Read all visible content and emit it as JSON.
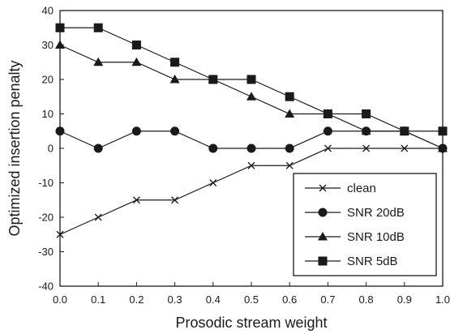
{
  "chart_data": {
    "type": "line",
    "title": "",
    "xlabel": "Prosodic stream weight",
    "ylabel": "Optimized insertion penalty",
    "xlim": [
      0.0,
      1.0
    ],
    "ylim": [
      -40,
      40
    ],
    "x_ticks": [
      "0.0",
      "0.1",
      "0.2",
      "0.3",
      "0.4",
      "0.5",
      "0.6",
      "0.7",
      "0.8",
      "0.9",
      "1.0"
    ],
    "y_ticks": [
      "40",
      "30",
      "20",
      "10",
      "0",
      "-10",
      "-20",
      "-30",
      "-40"
    ],
    "grid": false,
    "legend_position": "lower-right",
    "x": [
      0.0,
      0.1,
      0.2,
      0.3,
      0.4,
      0.5,
      0.6,
      0.7,
      0.8,
      0.9,
      1.0
    ],
    "series": [
      {
        "name": "clean",
        "marker": "x",
        "values": [
          -25,
          -20,
          -15,
          -15,
          -10,
          -5,
          -5,
          0,
          0,
          0,
          0
        ]
      },
      {
        "name": "SNR 20dB",
        "marker": "circle",
        "values": [
          5,
          0,
          5,
          5,
          0,
          0,
          0,
          5,
          5,
          5,
          0
        ]
      },
      {
        "name": "SNR 10dB",
        "marker": "triangle",
        "values": [
          30,
          25,
          25,
          20,
          20,
          15,
          10,
          10,
          5,
          5,
          0
        ]
      },
      {
        "name": "SNR 5dB",
        "marker": "square",
        "values": [
          35,
          35,
          30,
          25,
          20,
          20,
          15,
          10,
          10,
          5,
          5
        ]
      }
    ],
    "colors": {
      "line": "#1a1a1a",
      "background": "#ffffff"
    }
  }
}
